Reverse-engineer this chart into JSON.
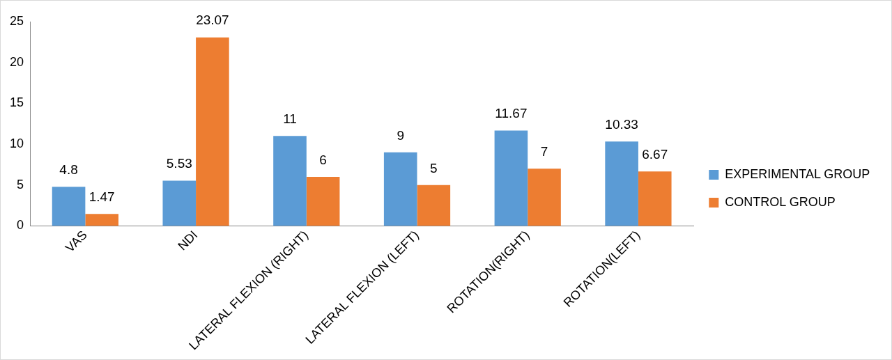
{
  "chart_data": {
    "type": "bar",
    "categories": [
      "VAS",
      "NDI",
      "LATERAL FLEXION (RIGHT)",
      "LATERAL FLEXION (LEFT)",
      "ROTATION(RIGHT)",
      "ROTATION(LEFT)"
    ],
    "series": [
      {
        "name": "EXPERIMENTAL GROUP",
        "color": "#5b9bd5",
        "values": [
          4.8,
          5.53,
          11,
          9,
          11.67,
          10.33
        ]
      },
      {
        "name": "CONTROL GROUP",
        "color": "#ed7d31",
        "values": [
          1.47,
          23.07,
          6,
          5,
          7,
          6.67
        ]
      }
    ],
    "ylim": [
      0,
      25
    ],
    "yticks": [
      0,
      5,
      10,
      15,
      20,
      25
    ],
    "grid": false,
    "legend": "right",
    "data_labels": true
  }
}
